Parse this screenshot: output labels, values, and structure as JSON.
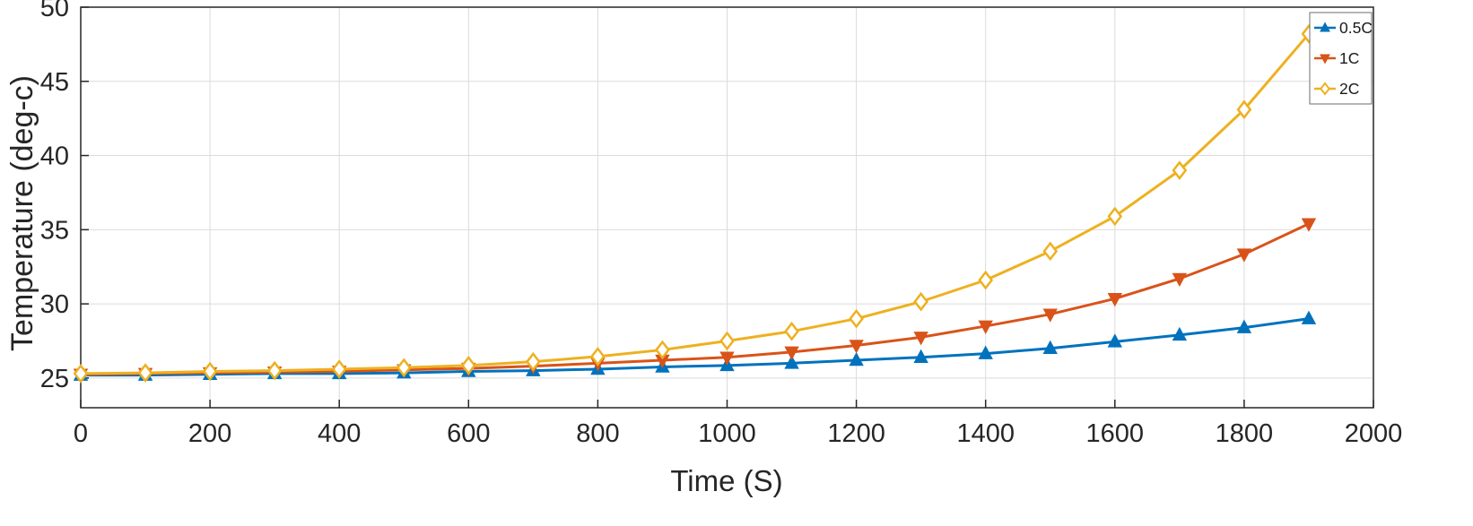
{
  "chart_data": {
    "type": "line",
    "title": "",
    "xlabel": "Time (S)",
    "ylabel": "Temperature (deg-c)",
    "xlim": [
      0,
      2000
    ],
    "ylim": [
      23,
      50
    ],
    "xticks": [
      0,
      200,
      400,
      600,
      800,
      1000,
      1200,
      1400,
      1600,
      1800,
      2000
    ],
    "yticks": [
      25,
      30,
      35,
      40,
      45,
      50
    ],
    "grid": true,
    "legend": {
      "position": "top-right",
      "entries": [
        "0.5C",
        "1C",
        "2C"
      ]
    },
    "axis_color": "#262626",
    "grid_color": "#DBDBDB",
    "background": "#FFFFFF",
    "x": [
      0,
      100,
      200,
      300,
      400,
      500,
      600,
      700,
      800,
      900,
      1000,
      1100,
      1200,
      1300,
      1400,
      1500,
      1600,
      1700,
      1800,
      1900
    ],
    "series": [
      {
        "name": "0.5C",
        "color": "#0072BD",
        "marker": "triangle-up",
        "values": [
          25.2,
          25.2,
          25.25,
          25.3,
          25.3,
          25.35,
          25.45,
          25.5,
          25.6,
          25.75,
          25.85,
          26.0,
          26.2,
          26.4,
          26.65,
          27.0,
          27.45,
          27.9,
          28.4,
          29.0
        ]
      },
      {
        "name": "1C",
        "color": "#D95319",
        "marker": "triangle-down",
        "values": [
          25.25,
          25.3,
          25.35,
          25.4,
          25.45,
          25.55,
          25.65,
          25.8,
          26.0,
          26.2,
          26.4,
          26.75,
          27.2,
          27.75,
          28.5,
          29.3,
          30.35,
          31.7,
          33.35,
          35.4
        ]
      },
      {
        "name": "2C",
        "color": "#EDB120",
        "marker": "diamond",
        "values": [
          25.3,
          25.35,
          25.45,
          25.5,
          25.6,
          25.7,
          25.85,
          26.1,
          26.45,
          26.9,
          27.5,
          28.15,
          29.0,
          30.15,
          31.6,
          33.55,
          35.9,
          39.0,
          43.1,
          48.2
        ]
      }
    ]
  }
}
